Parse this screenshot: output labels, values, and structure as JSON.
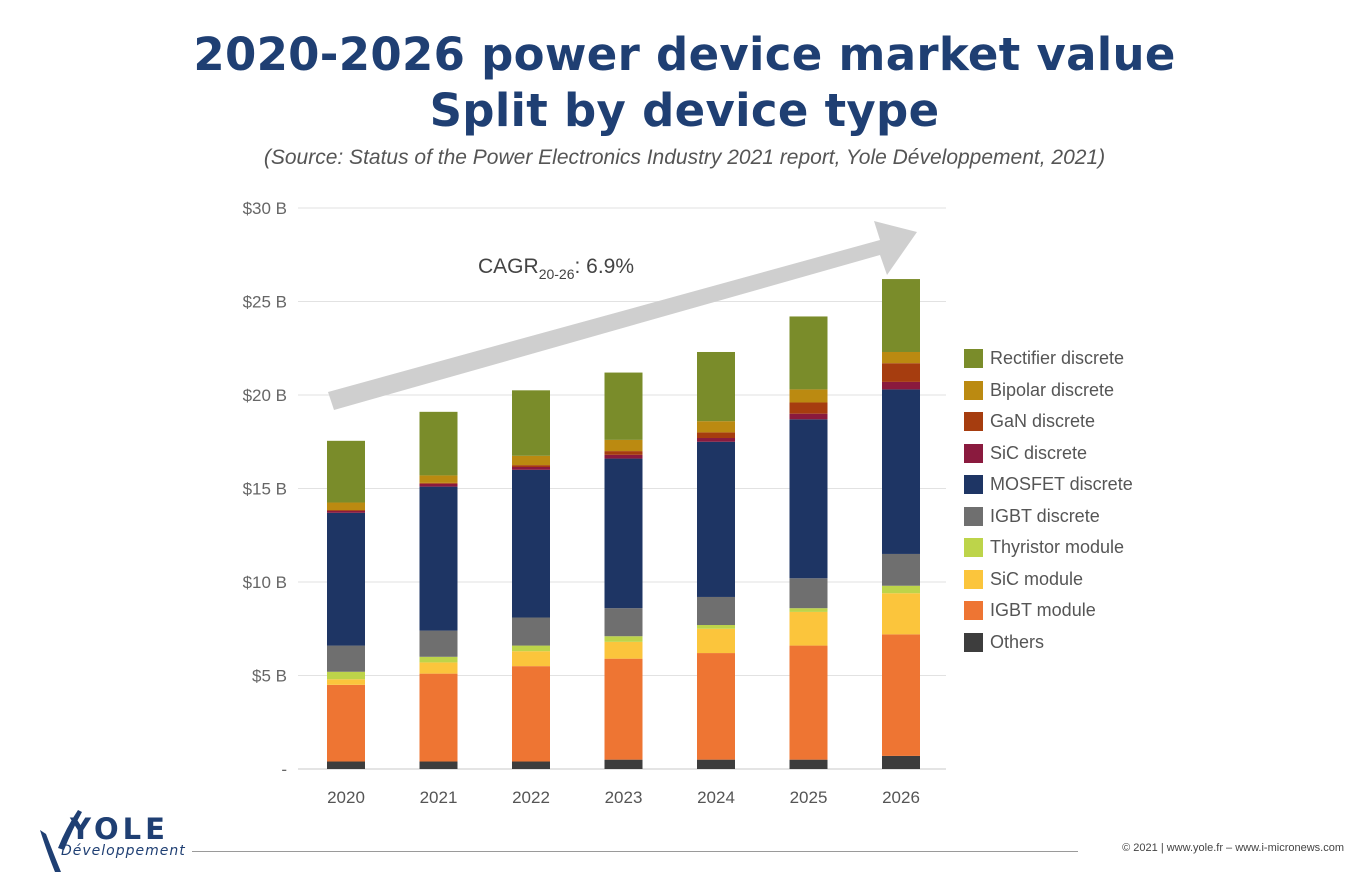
{
  "header": {
    "title_line1": "2020-2026 power device market value",
    "title_line2": "Split by device type",
    "subtitle": "(Source: Status of the Power Electronics Industry 2021 report, Yole Développement, 2021)"
  },
  "annotation": {
    "cagr_label": "CAGR",
    "cagr_sub": "20-26",
    "cagr_value": ": 6.9%"
  },
  "colors": {
    "Others": "#3d3d3d",
    "IGBT module": "#ee7533",
    "SiC module": "#fbc53c",
    "Thyristor module": "#bdd44a",
    "IGBT discrete": "#6f6f6f",
    "MOSFET discrete": "#1e3564",
    "SiC discrete": "#8a1a3e",
    "GaN discrete": "#a63d0f",
    "Bipolar discrete": "#bb8a11",
    "Rectifier discrete": "#7a8c2a"
  },
  "logo": {
    "name": "YOLE",
    "sub": "Développement"
  },
  "footer": {
    "copyright": "© 2021 | www.yole.fr – www.i-micronews.com"
  },
  "chart_data": {
    "type": "bar",
    "stacked": true,
    "title": "2020-2026 power device market value",
    "subtitle": "Split by device type",
    "categories": [
      "2020",
      "2021",
      "2022",
      "2023",
      "2024",
      "2025",
      "2026"
    ],
    "ylim": [
      0,
      30
    ],
    "yticks": [
      0,
      5,
      10,
      15,
      20,
      25,
      30
    ],
    "ytick_labels": [
      "-",
      "$5 B",
      "$10 B",
      "$15 B",
      "$20 B",
      "$25 B",
      "$30 B"
    ],
    "grid": true,
    "legend_position": "right",
    "series": [
      {
        "name": "Others",
        "values": [
          0.4,
          0.4,
          0.4,
          0.5,
          0.5,
          0.5,
          0.7
        ]
      },
      {
        "name": "IGBT module",
        "values": [
          4.1,
          4.7,
          5.1,
          5.4,
          5.7,
          6.1,
          6.5
        ]
      },
      {
        "name": "SiC module",
        "values": [
          0.3,
          0.6,
          0.8,
          0.9,
          1.3,
          1.8,
          2.2
        ]
      },
      {
        "name": "Thyristor module",
        "values": [
          0.4,
          0.3,
          0.3,
          0.3,
          0.2,
          0.2,
          0.4
        ]
      },
      {
        "name": "IGBT discrete",
        "values": [
          1.4,
          1.4,
          1.5,
          1.5,
          1.5,
          1.6,
          1.7
        ]
      },
      {
        "name": "MOSFET discrete",
        "values": [
          7.1,
          7.7,
          7.9,
          8.0,
          8.3,
          8.5,
          8.8
        ]
      },
      {
        "name": "SiC discrete",
        "values": [
          0.1,
          0.15,
          0.15,
          0.2,
          0.2,
          0.3,
          0.4
        ]
      },
      {
        "name": "GaN discrete",
        "values": [
          0.05,
          0.05,
          0.1,
          0.2,
          0.3,
          0.6,
          1.0
        ]
      },
      {
        "name": "Bipolar discrete",
        "values": [
          0.4,
          0.4,
          0.5,
          0.6,
          0.6,
          0.7,
          0.6
        ]
      },
      {
        "name": "Rectifier discrete",
        "values": [
          3.3,
          3.4,
          3.5,
          3.6,
          3.7,
          3.9,
          3.9
        ]
      }
    ],
    "legend_order": [
      "Rectifier discrete",
      "Bipolar discrete",
      "GaN discrete",
      "SiC discrete",
      "MOSFET discrete",
      "IGBT discrete",
      "Thyristor module",
      "SiC module",
      "IGBT module",
      "Others"
    ]
  }
}
